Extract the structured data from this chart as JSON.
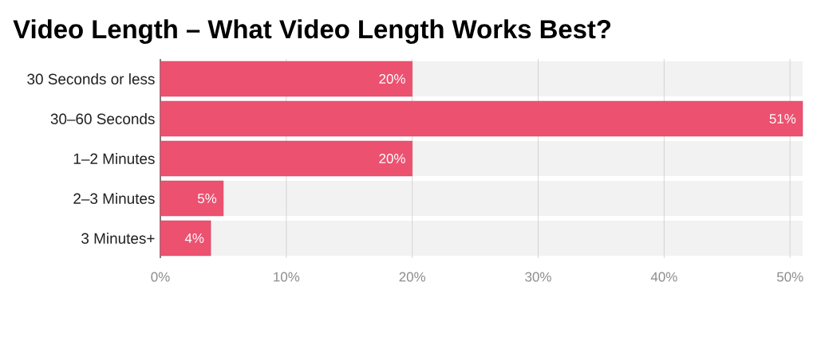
{
  "chart_data": {
    "type": "bar",
    "orientation": "horizontal",
    "title": "Video Length – What Video Length Works Best?",
    "categories": [
      "30 Seconds or less",
      "30–60 Seconds",
      "1–2 Minutes",
      "2–3 Minutes",
      "3 Minutes+"
    ],
    "values": [
      20,
      51,
      20,
      5,
      4
    ],
    "color": "#ec5170",
    "value_labels": [
      "20%",
      "51%",
      "20%",
      "5%",
      "4%"
    ],
    "xlim": [
      0,
      51
    ],
    "xticks": [
      {
        "value": 0,
        "label": "0%"
      },
      {
        "value": 10,
        "label": "10%"
      },
      {
        "value": 20,
        "label": "20%"
      },
      {
        "value": 30,
        "label": "30%"
      },
      {
        "value": 40,
        "label": "40%"
      },
      {
        "value": 50,
        "label": "50%"
      }
    ],
    "grid": "x"
  }
}
